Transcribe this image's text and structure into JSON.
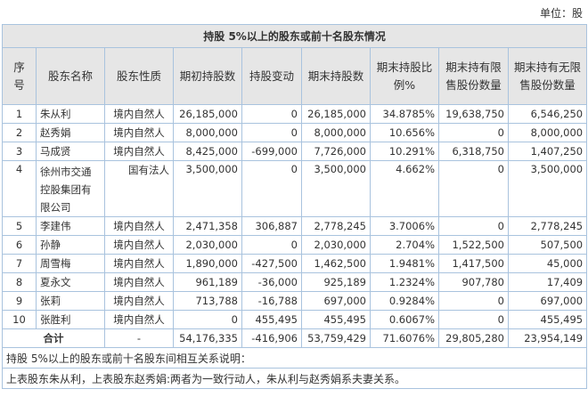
{
  "unit_label": "单位：股",
  "table_title": "持股 5%以上的股东或前十名股东情况",
  "headers": [
    "序号",
    "股东名称",
    "股东性质",
    "期初持股数",
    "持股变动",
    "期末持股数",
    "期末持股比例%",
    "期末持有限售股份数量",
    "期末持有无限售股份数量"
  ],
  "rows": [
    [
      "1",
      "朱从利",
      "境内自然人",
      "26,185,000",
      "0",
      "26,185,000",
      "34.8785%",
      "19,638,750",
      "6,546,250"
    ],
    [
      "2",
      "赵秀娟",
      "境内自然人",
      "8,000,000",
      "0",
      "8,000,000",
      "10.656%",
      "0",
      "8,000,000"
    ],
    [
      "3",
      "马成贤",
      "境内自然人",
      "8,425,000",
      "-699,000",
      "7,726,000",
      "10.291%",
      "6,318,750",
      "1,407,250"
    ],
    [
      "4",
      "徐州市交通控股集团有限公司",
      "国有法人",
      "3,500,000",
      "0",
      "3,500,000",
      "4.662%",
      "0",
      "3,500,000"
    ],
    [
      "5",
      "李建伟",
      "境内自然人",
      "2,471,358",
      "306,887",
      "2,778,245",
      "3.7006%",
      "0",
      "2,778,245"
    ],
    [
      "6",
      "孙静",
      "境内自然人",
      "2,030,000",
      "0",
      "2,030,000",
      "2.704%",
      "1,522,500",
      "507,500"
    ],
    [
      "7",
      "周雪梅",
      "境内自然人",
      "1,890,000",
      "-427,500",
      "1,462,500",
      "1.9481%",
      "1,417,500",
      "45,000"
    ],
    [
      "8",
      "夏永文",
      "境内自然人",
      "961,189",
      "-36,000",
      "925,189",
      "1.2324%",
      "907,780",
      "17,409"
    ],
    [
      "9",
      "张莉",
      "境内自然人",
      "713,788",
      "-16,788",
      "697,000",
      "0.9284%",
      "0",
      "697,000"
    ],
    [
      "10",
      "张胜利",
      "境内自然人",
      "0",
      "455,495",
      "455,495",
      "0.6067%",
      "0",
      "455,495"
    ]
  ],
  "total": [
    "合计",
    "-",
    "54,176,335",
    "-416,906",
    "53,759,429",
    "71.6076%",
    "29,805,280",
    "23,954,149"
  ],
  "notes": [
    "持股 5%以上的股东或前十名股东间相互关系说明：",
    "上表股东朱从利，上表股东赵秀娟:两者为一致行动人，朱从利与赵秀娟系夫妻关系。"
  ]
}
